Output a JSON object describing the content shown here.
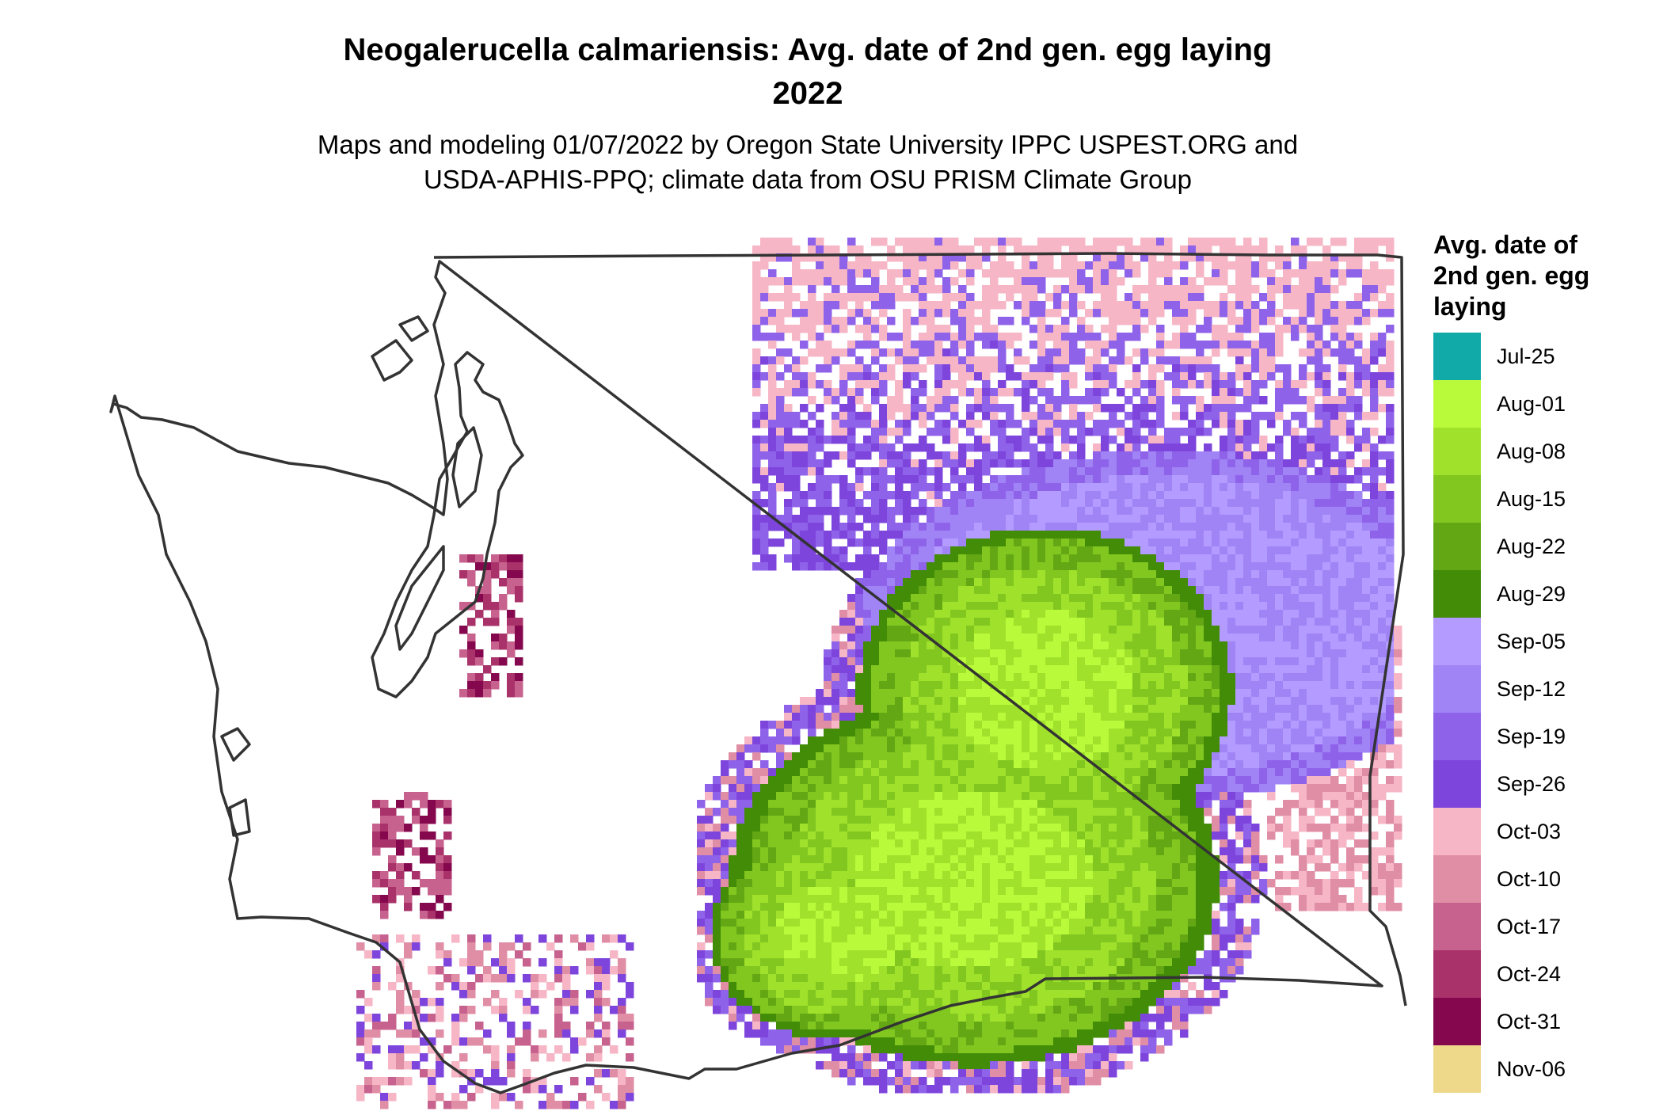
{
  "title_line1": "Neogalerucella calmariensis: Avg. date of 2nd gen. egg laying",
  "title_line2": "2022",
  "subtitle_line1": "Maps and modeling 01/07/2022 by Oregon State University IPPC USPEST.ORG and",
  "subtitle_line2": "USDA-APHIS-PPQ; climate data from OSU PRISM Climate Group",
  "legend": {
    "title_lines": [
      "Avg. date of",
      "2nd gen. egg",
      "laying"
    ],
    "items": [
      {
        "label": "Jul-25",
        "color": "#12a9a9"
      },
      {
        "label": "Aug-01",
        "color": "#b9fa3a"
      },
      {
        "label": "Aug-08",
        "color": "#a0e12c"
      },
      {
        "label": "Aug-15",
        "color": "#82c720"
      },
      {
        "label": "Aug-22",
        "color": "#63a814"
      },
      {
        "label": "Aug-29",
        "color": "#428c08"
      },
      {
        "label": "Sep-05",
        "color": "#b39bff"
      },
      {
        "label": "Sep-12",
        "color": "#a084f5"
      },
      {
        "label": "Sep-19",
        "color": "#8f62ea"
      },
      {
        "label": "Sep-26",
        "color": "#7e45dd"
      },
      {
        "label": "Oct-03",
        "color": "#f6b6c6"
      },
      {
        "label": "Oct-10",
        "color": "#e08da6"
      },
      {
        "label": "Oct-17",
        "color": "#c7628e"
      },
      {
        "label": "Oct-24",
        "color": "#a83269"
      },
      {
        "label": "Oct-31",
        "color": "#85084e"
      },
      {
        "label": "Nov-06",
        "color": "#eed98a"
      }
    ]
  }
}
